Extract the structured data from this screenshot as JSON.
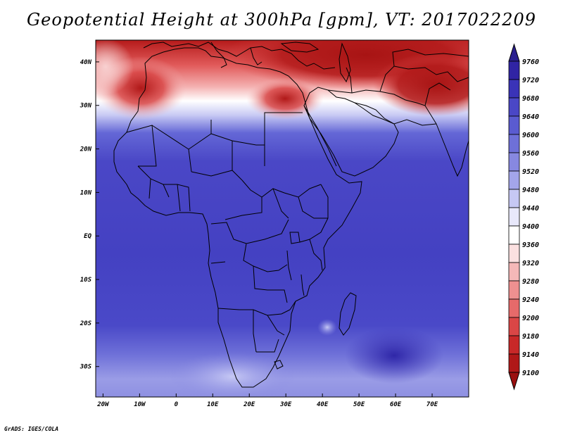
{
  "title": "Geopotential Height at 300hPa [gpm], VT: 2017022209",
  "credit": "GrADS: IGES/COLA",
  "map": {
    "lon_range": [
      -22,
      80
    ],
    "lat_range": [
      -37,
      45
    ],
    "lon_ticks": [
      "20W",
      "10W",
      "0",
      "10E",
      "20E",
      "30E",
      "40E",
      "50E",
      "60E",
      "70E"
    ],
    "lon_tick_values": [
      -20,
      -10,
      0,
      10,
      20,
      30,
      40,
      50,
      60,
      70
    ],
    "lat_ticks": [
      "40N",
      "30N",
      "20N",
      "10N",
      "EQ",
      "10S",
      "20S",
      "30S"
    ],
    "lat_tick_values": [
      40,
      30,
      20,
      10,
      0,
      -10,
      -20,
      -30
    ]
  },
  "colorbar": {
    "levels": [
      "9760",
      "9720",
      "9680",
      "9640",
      "9600",
      "9560",
      "9520",
      "9480",
      "9440",
      "9400",
      "9360",
      "9320",
      "9280",
      "9240",
      "9200",
      "9180",
      "9140",
      "9100"
    ],
    "colors": [
      "#2a1f8f",
      "#3024a4",
      "#3a33b8",
      "#4a47c6",
      "#5a5bd0",
      "#6e70d8",
      "#8788e0",
      "#a3a5ea",
      "#c6c8f4",
      "#e8e8fb",
      "#ffffff",
      "#fbe0e0",
      "#f5b8b8",
      "#ee9090",
      "#e66a6a",
      "#da4646",
      "#c82828",
      "#b01818",
      "#9a1010"
    ]
  }
}
